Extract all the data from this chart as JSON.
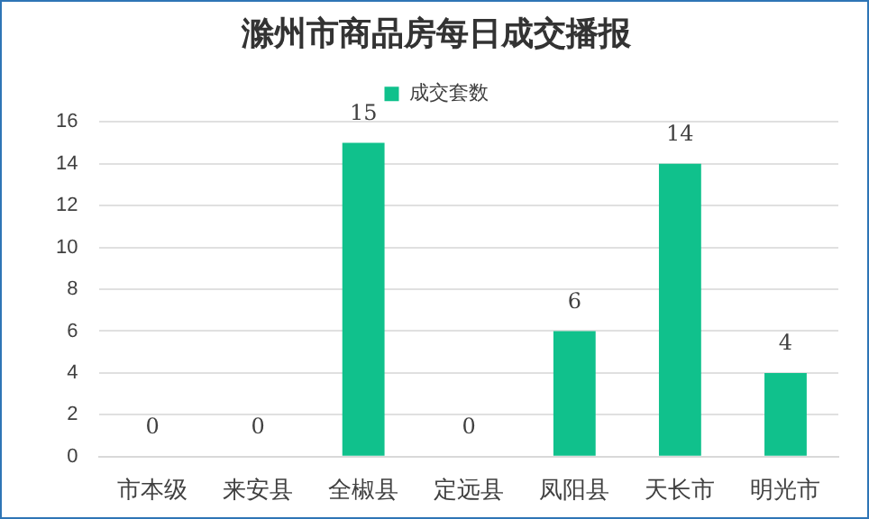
{
  "chart_data": {
    "type": "bar",
    "title": "滁州市商品房每日成交播报",
    "categories": [
      "市本级",
      "来安县",
      "全椒县",
      "定远县",
      "凤阳县",
      "天长市",
      "明光市"
    ],
    "series": [
      {
        "name": "成交套数",
        "color": "#10c18c",
        "values": [
          0,
          0,
          15,
          0,
          6,
          14,
          4
        ]
      }
    ],
    "ylim": [
      0,
      16
    ],
    "yticks": [
      0,
      2,
      4,
      6,
      8,
      10,
      12,
      14,
      16
    ],
    "grid": "y",
    "legend": "top",
    "data_labels": true
  }
}
